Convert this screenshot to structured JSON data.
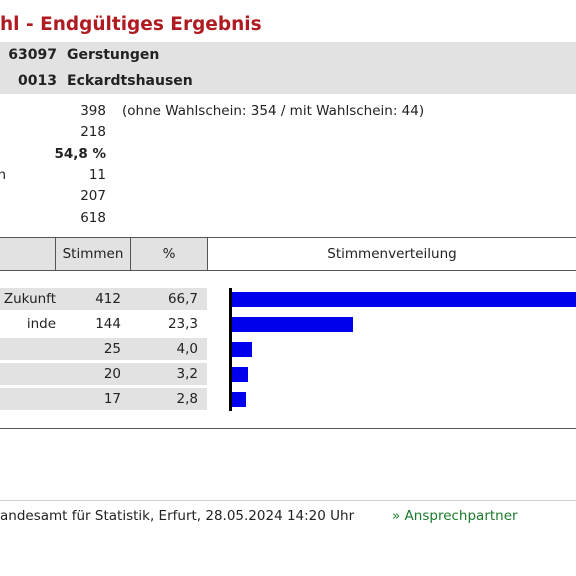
{
  "title": "hl - Endgültiges Ergebnis",
  "region": {
    "code": "63097",
    "name": "Gerstungen"
  },
  "district": {
    "code": "0013",
    "name": "Eckardtshausen"
  },
  "summary": [
    {
      "label": "",
      "value": "398",
      "note": "(ohne Wahlschein: 354 / mit Wahlschein: 44)",
      "bold": false
    },
    {
      "label": "",
      "value": "218",
      "note": "",
      "bold": false
    },
    {
      "label": "",
      "value": "54,8 %",
      "note": "",
      "bold": true
    },
    {
      "label": "n",
      "value": "11",
      "note": "",
      "bold": false
    },
    {
      "label": "",
      "value": "207",
      "note": "",
      "bold": false
    },
    {
      "label": "",
      "value": "618",
      "note": "",
      "bold": false
    }
  ],
  "table": {
    "headers": {
      "votes": "Stimmen",
      "percent": "%",
      "distribution": "Stimmenverteilung"
    },
    "rows": [
      {
        "party": "Zukunft",
        "votes": "412",
        "percent": "66,7",
        "share": 66.7
      },
      {
        "party": "inde",
        "votes": "144",
        "percent": "23,3",
        "share": 23.3
      },
      {
        "party": "",
        "votes": "25",
        "percent": "4,0",
        "share": 4.0
      },
      {
        "party": "",
        "votes": "20",
        "percent": "3,2",
        "share": 3.2
      },
      {
        "party": "",
        "votes": "17",
        "percent": "2,8",
        "share": 2.8
      }
    ],
    "bar_color": "#0000ee"
  },
  "footer": {
    "source": "andesamt für Statistik, Erfurt, 28.05.2024 14:20 Uhr",
    "contact": "» Ansprechpartner"
  },
  "colors": {
    "title": "#b01b22",
    "header_bg": "#e2e2e2",
    "link": "#1a7a2a"
  }
}
